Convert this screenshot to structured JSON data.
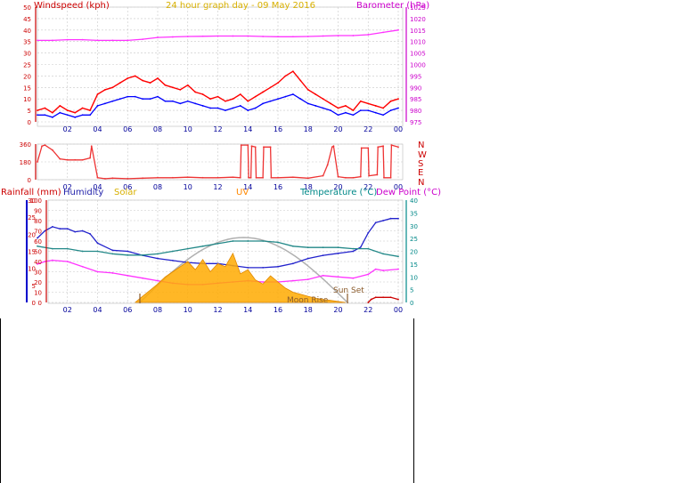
{
  "header": {
    "windspeed_label": "Windspeed (kph)",
    "title": "24 hour graph day - 09 May 2016",
    "barometer_label": "Barometer (hPa)"
  },
  "compass": [
    "N",
    "W",
    "S",
    "E",
    "N"
  ],
  "bottom_labels": {
    "rainfall": "Rainfall (mm)",
    "humidity": "Humidity",
    "solar": "Solar",
    "uv": "UV",
    "temperature": "Temperature (°C)",
    "dew_point": "Dew Point (°C)",
    "sun_set": "Sun Set",
    "moon_rise": "Moon Rise"
  },
  "colors": {
    "wind_gust": "#ff0000",
    "wind_avg": "#0000ff",
    "barometer": "#ff33ff",
    "direction": "#ee3333",
    "humidity": "#2222cc",
    "temperature": "#228888",
    "dew_point": "#ff33ff",
    "solar": "#ffaa00",
    "rain": "#cc0000",
    "grid": "#c8c8c8",
    "axis_red": "#cc0000",
    "axis_magenta": "#cc00cc",
    "axis_blue": "#0000cc",
    "axis_teal": "#008888",
    "time_axis": "#000099"
  },
  "chart_data": [
    {
      "type": "line",
      "x_ticks": [
        "02",
        "04",
        "06",
        "08",
        "10",
        "12",
        "14",
        "16",
        "18",
        "20",
        "22",
        "00"
      ],
      "y_left_ticks": [
        0,
        5,
        10,
        15,
        20,
        25,
        30,
        35,
        40,
        45,
        50
      ],
      "y_right_ticks": [
        975,
        980,
        985,
        990,
        995,
        1000,
        1005,
        1010,
        1015,
        1020,
        1025
      ],
      "ylim_left": [
        0,
        50
      ],
      "ylim_right": [
        975,
        1025
      ],
      "series": [
        {
          "name": "Windspeed (kph)",
          "axis": "left",
          "x": [
            0,
            0.5,
            1,
            1.5,
            2,
            2.5,
            3,
            3.5,
            4,
            4.5,
            5,
            5.5,
            6,
            6.5,
            7,
            7.5,
            8,
            8.5,
            9,
            9.5,
            10,
            10.5,
            11,
            11.5,
            12,
            12.5,
            13,
            13.5,
            14,
            14.5,
            15,
            15.5,
            16,
            16.5,
            17,
            17.5,
            18,
            18.5,
            19,
            19.5,
            20,
            20.5,
            21,
            21.5,
            22,
            22.5,
            23,
            23.5,
            24
          ],
          "values": [
            5,
            6,
            4,
            7,
            5,
            4,
            6,
            5,
            12,
            14,
            15,
            17,
            19,
            20,
            18,
            17,
            19,
            16,
            15,
            14,
            16,
            13,
            12,
            10,
            11,
            9,
            10,
            12,
            9,
            11,
            13,
            15,
            17,
            20,
            22,
            18,
            14,
            12,
            10,
            8,
            6,
            7,
            5,
            9,
            8,
            7,
            6,
            9,
            10
          ]
        },
        {
          "name": "Average wind",
          "axis": "left",
          "x": [
            0,
            0.5,
            1,
            1.5,
            2,
            2.5,
            3,
            3.5,
            4,
            4.5,
            5,
            5.5,
            6,
            6.5,
            7,
            7.5,
            8,
            8.5,
            9,
            9.5,
            10,
            10.5,
            11,
            11.5,
            12,
            12.5,
            13,
            13.5,
            14,
            14.5,
            15,
            15.5,
            16,
            16.5,
            17,
            17.5,
            18,
            18.5,
            19,
            19.5,
            20,
            20.5,
            21,
            21.5,
            22,
            22.5,
            23,
            23.5,
            24
          ],
          "values": [
            3,
            3,
            2,
            4,
            3,
            2,
            3,
            3,
            7,
            8,
            9,
            10,
            11,
            11,
            10,
            10,
            11,
            9,
            9,
            8,
            9,
            8,
            7,
            6,
            6,
            5,
            6,
            7,
            5,
            6,
            8,
            9,
            10,
            11,
            12,
            10,
            8,
            7,
            6,
            5,
            3,
            4,
            3,
            5,
            5,
            4,
            3,
            5,
            6
          ]
        },
        {
          "name": "Barometer (hPa)",
          "axis": "right",
          "x": [
            0,
            1,
            2,
            3,
            4,
            5,
            6,
            7,
            8,
            9,
            10,
            11,
            12,
            13,
            14,
            15,
            16,
            17,
            18,
            19,
            20,
            21,
            22,
            23,
            24
          ],
          "values": [
            1010.5,
            1010.5,
            1010.8,
            1010.8,
            1010.5,
            1010.5,
            1010.5,
            1011,
            1011.8,
            1012,
            1012.2,
            1012.3,
            1012.4,
            1012.4,
            1012.4,
            1012.2,
            1012.1,
            1012.1,
            1012.2,
            1012.4,
            1012.6,
            1012.6,
            1013,
            1014,
            1015
          ]
        }
      ]
    },
    {
      "type": "line",
      "x_ticks": [
        "02",
        "04",
        "06",
        "08",
        "10",
        "12",
        "14",
        "16",
        "18",
        "20",
        "22",
        "00"
      ],
      "y_left_ticks": [
        0,
        180,
        360
      ],
      "ylim_left": [
        0,
        360
      ],
      "series": [
        {
          "name": "Wind direction",
          "axis": "left",
          "x": [
            0,
            0.3,
            0.5,
            1,
            1.5,
            2,
            2.5,
            3,
            3.5,
            3.6,
            4,
            4.5,
            5,
            6,
            7,
            8,
            9,
            10,
            11,
            12,
            13,
            13.5,
            13.55,
            14,
            14.05,
            14.2,
            14.25,
            14.5,
            14.55,
            15,
            15.05,
            15.5,
            15.55,
            16,
            17,
            18,
            19,
            19.3,
            19.6,
            19.7,
            20,
            20.5,
            21,
            21.5,
            21.55,
            22,
            22.05,
            22.6,
            22.65,
            23,
            23.05,
            23.5,
            23.55,
            24
          ],
          "values": [
            180,
            340,
            350,
            300,
            210,
            200,
            200,
            200,
            220,
            340,
            20,
            10,
            15,
            10,
            15,
            20,
            20,
            25,
            20,
            20,
            25,
            20,
            350,
            350,
            20,
            20,
            340,
            330,
            20,
            20,
            330,
            330,
            20,
            20,
            25,
            15,
            40,
            150,
            330,
            340,
            30,
            20,
            20,
            30,
            320,
            320,
            40,
            50,
            330,
            340,
            20,
            20,
            350,
            330
          ]
        }
      ]
    },
    {
      "type": "line",
      "x_ticks": [
        "02",
        "04",
        "06",
        "08",
        "10",
        "12",
        "14",
        "16",
        "18",
        "20",
        "22",
        "00"
      ],
      "y_left_ticks": [
        0,
        10,
        20,
        30,
        40,
        50,
        60,
        70,
        80,
        90,
        100
      ],
      "y_left2_ticks": [
        0,
        5,
        10,
        15,
        20,
        25,
        30
      ],
      "y_right_ticks": [
        0,
        5,
        10,
        15,
        20,
        25,
        30,
        35,
        40
      ],
      "ylim_left": [
        0,
        100
      ],
      "ylim_right": [
        0,
        40
      ],
      "series": [
        {
          "name": "Humidity",
          "axis": "left",
          "x": [
            0,
            0.5,
            1,
            1.5,
            2,
            2.5,
            3,
            3.5,
            4,
            5,
            6,
            7,
            8,
            9,
            10,
            11,
            12,
            13,
            14,
            15,
            16,
            17,
            18,
            19,
            20,
            21,
            21.5,
            22,
            22.5,
            23,
            23.5,
            24
          ],
          "values": [
            63,
            70,
            74,
            72,
            72,
            69,
            70,
            67,
            58,
            51,
            50,
            46,
            43,
            41,
            39,
            38,
            38,
            36,
            34,
            34,
            35,
            38,
            43,
            46,
            48,
            50,
            54,
            68,
            78,
            80,
            82,
            82
          ]
        },
        {
          "name": "Temperature (°C)",
          "axis": "right",
          "x": [
            0,
            1,
            2,
            3,
            4,
            5,
            6,
            7,
            8,
            9,
            10,
            11,
            12,
            13,
            14,
            15,
            16,
            17,
            18,
            19,
            20,
            21,
            22,
            23,
            24
          ],
          "values": [
            22,
            21,
            21,
            20,
            20,
            19,
            18.5,
            18.5,
            19,
            20,
            21,
            22,
            23,
            24,
            24,
            24,
            23.5,
            22,
            21.5,
            21.5,
            21.5,
            21,
            21,
            19,
            18
          ]
        },
        {
          "name": "Dew Point (°C)",
          "axis": "right",
          "x": [
            0,
            0.5,
            1,
            2,
            3,
            4,
            5,
            6,
            7,
            8,
            9,
            10,
            11,
            12,
            13,
            14,
            15,
            16,
            17,
            18,
            19,
            20,
            21,
            22,
            22.5,
            23,
            24
          ],
          "values": [
            15,
            16,
            16.5,
            16,
            14,
            12,
            11.5,
            10.5,
            9.5,
            8.5,
            7.5,
            7,
            7,
            7.5,
            8,
            8.5,
            8,
            8,
            8.5,
            9,
            10.5,
            10,
            9.5,
            11,
            13,
            12.5,
            13
          ]
        },
        {
          "name": "Solar",
          "axis": "left",
          "x": [
            6.5,
            7,
            7.5,
            8,
            8.5,
            9,
            9.5,
            10,
            10.5,
            11,
            11.5,
            12,
            12.5,
            13,
            13.5,
            14,
            14.5,
            15,
            15.5,
            16,
            16.5,
            17,
            17.5,
            18,
            18.5,
            19,
            19.5,
            20,
            20.5
          ],
          "values": [
            0,
            6,
            12,
            18,
            25,
            30,
            35,
            40,
            32,
            42,
            30,
            38,
            35,
            48,
            28,
            32,
            22,
            18,
            26,
            20,
            14,
            10,
            8,
            6,
            4,
            3,
            2,
            1,
            0
          ]
        },
        {
          "name": "Rainfall (mm)",
          "axis": "left",
          "x": [
            22,
            22.2,
            22.5,
            23,
            23.5,
            24
          ],
          "values": [
            0,
            3,
            5,
            5,
            5,
            3
          ]
        }
      ]
    }
  ]
}
